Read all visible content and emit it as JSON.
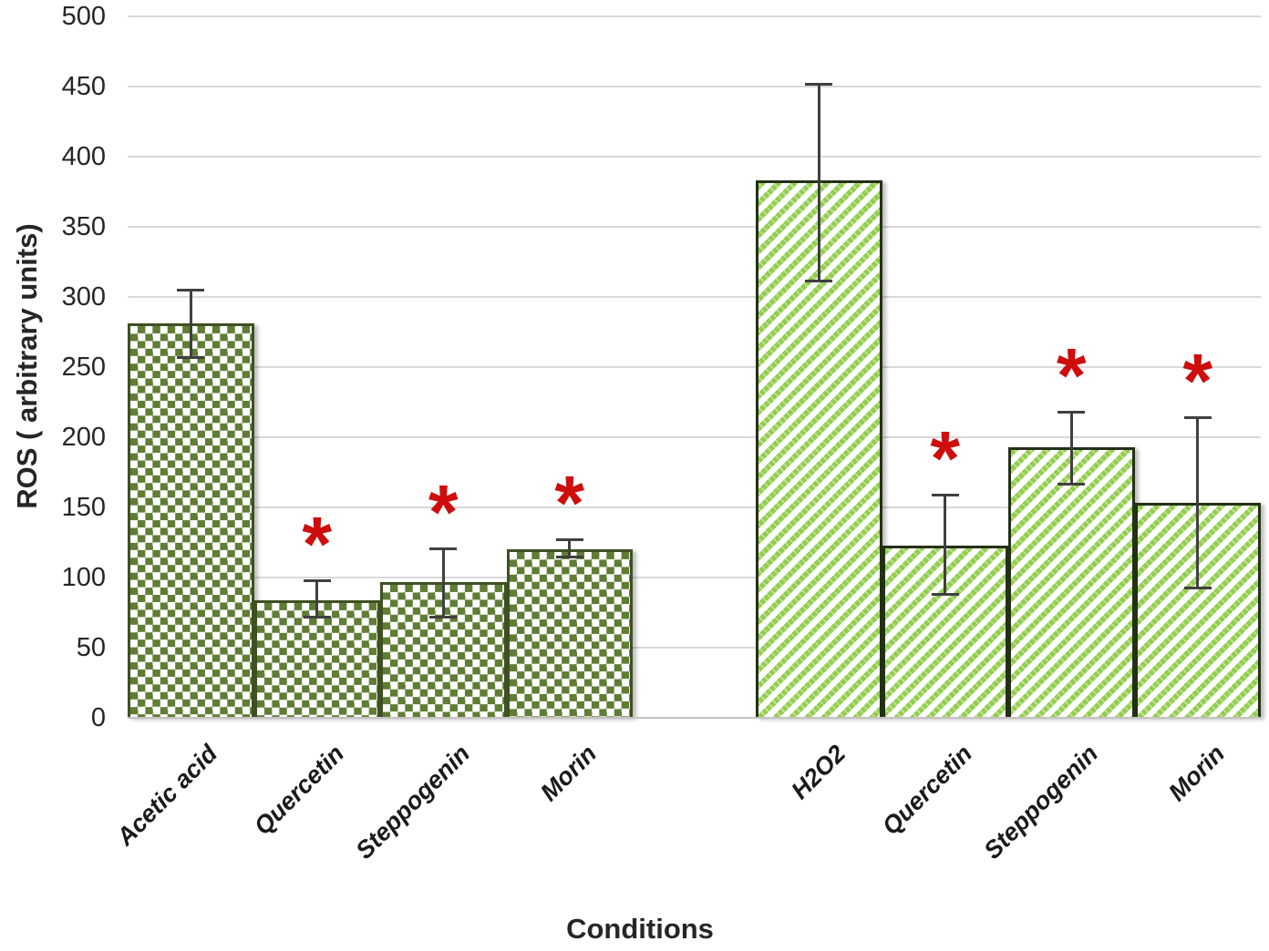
{
  "chart_data": {
    "type": "bar",
    "title": "",
    "xlabel": "Conditions",
    "ylabel": "ROS ( arbitrary units)",
    "ylim": [
      0,
      500
    ],
    "ytick_step": 50,
    "yticks": [
      0,
      50,
      100,
      150,
      200,
      250,
      300,
      350,
      400,
      450,
      500
    ],
    "grid": "horizontal",
    "legend_position": "none",
    "significance_marker": "*",
    "marker_color": "#ce0d0d",
    "gridline_color": "#d9d9d9",
    "error_bar_color": "#404040",
    "groups": [
      {
        "name": "acetic-acid-group",
        "pattern": "checker",
        "fill_color": "#5f7d35",
        "border_color": "#3f5022",
        "bars": [
          {
            "label": "Acetic acid",
            "value": 281,
            "error_low": 257,
            "error_high": 305,
            "significant": false
          },
          {
            "label": "Quercetin",
            "value": 84,
            "error_low": 72,
            "error_high": 98,
            "significant": true
          },
          {
            "label": "Steppogenin",
            "value": 97,
            "error_low": 72,
            "error_high": 121,
            "significant": true
          },
          {
            "label": "Morin",
            "value": 120,
            "error_low": 115,
            "error_high": 127,
            "significant": true
          }
        ]
      },
      {
        "name": "h2o2-group",
        "pattern": "stripe",
        "fill_color": "#93ce4f",
        "border_color": "#243016",
        "bars": [
          {
            "label": "H2O2",
            "value": 383,
            "error_low": 312,
            "error_high": 452,
            "significant": false
          },
          {
            "label": "Quercetin",
            "value": 123,
            "error_low": 88,
            "error_high": 159,
            "significant": true
          },
          {
            "label": "Steppogenin",
            "value": 193,
            "error_low": 167,
            "error_high": 218,
            "significant": true
          },
          {
            "label": "Morin",
            "value": 153,
            "error_low": 93,
            "error_high": 214,
            "significant": true
          }
        ]
      }
    ]
  }
}
